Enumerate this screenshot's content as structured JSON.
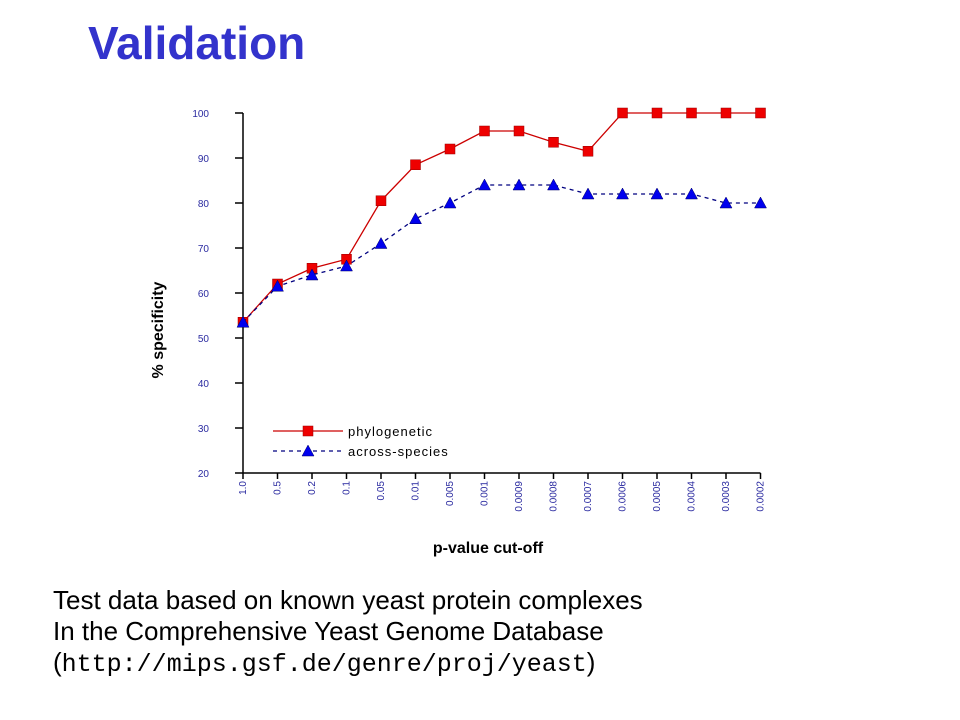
{
  "slide": {
    "title": "Validation",
    "caption_line1": "Test data based on known yeast protein complexes",
    "caption_line2": "In the Comprehensive Yeast Genome Database",
    "caption_open": "(",
    "caption_url": "http://mips.gsf.de/genre/proj/yeast",
    "caption_close": ")"
  },
  "colors": {
    "title": "#3333cc",
    "tick_labels": "#2a2aa0",
    "phylogenetic": "#cc0000",
    "phylogenetic_marker": "#ee0000",
    "across_species_line": "#000080",
    "across_species_marker": "#0000ee"
  },
  "chart_data": {
    "type": "line",
    "xlabel": "p-value cut-off",
    "ylabel": "% specificity",
    "ylim": [
      20,
      100
    ],
    "yticks": [
      20,
      30,
      40,
      50,
      60,
      70,
      80,
      90,
      100
    ],
    "categories": [
      "1.0",
      "0.5",
      "0.2",
      "0.1",
      "0.05",
      "0.01",
      "0.005",
      "0.001",
      "0.0009",
      "0.0008",
      "0.0007",
      "0.0006",
      "0.0005",
      "0.0004",
      "0.0003",
      "0.0002"
    ],
    "grid": false,
    "legend_position": "bottom-left",
    "series": [
      {
        "name": "phylogenetic",
        "marker": "square",
        "line_style": "solid",
        "values": [
          53.5,
          62,
          65.5,
          67.5,
          80.5,
          88.5,
          92,
          96,
          96,
          93.5,
          91.5,
          100,
          100,
          100,
          100,
          100
        ]
      },
      {
        "name": "across-species",
        "marker": "triangle",
        "line_style": "dashed",
        "values": [
          53.5,
          61.5,
          64,
          66,
          71,
          76.5,
          80,
          84,
          84,
          84,
          82,
          82,
          82,
          82,
          80,
          80
        ]
      }
    ]
  }
}
